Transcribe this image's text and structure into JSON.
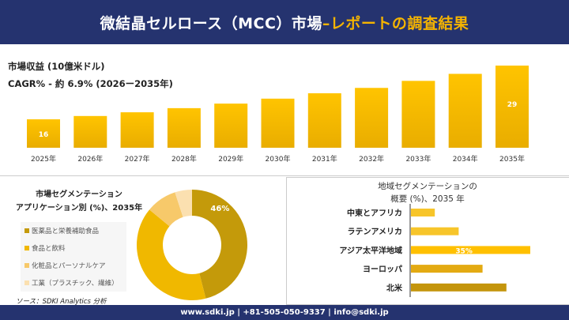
{
  "header": {
    "title_main": "微結晶セルロース（MCC）市場 ",
    "title_accent": "–レポートの調査結果"
  },
  "revenue_label": "市場収益 (10億米ドル)",
  "cagr_label": "CAGR% - 約 6.9% (2026ー2035年)",
  "donut_section": {
    "title_line1": "市場セグメンテーション",
    "title_line2": "アプリケーション別 (%)、2035年"
  },
  "region_section": {
    "title_line1": "地域セグメンテーションの",
    "title_line2": "概要 (%)、2035 年"
  },
  "source": "ソース：SDKI Analytics 分析",
  "footer": "www.sdki.jp | +81-505-050-9337 | info@sdki.jp",
  "colors": {
    "header": "#25336f",
    "accent": "#f5b400",
    "bar": "#f2b600"
  },
  "chart_data": [
    {
      "type": "bar",
      "categories": [
        "2025年",
        "2026年",
        "2027年",
        "2028年",
        "2029年",
        "2030年",
        "2031年",
        "2032年",
        "2033年",
        "2034年",
        "2035年"
      ],
      "values": [
        16,
        16.8,
        17.7,
        18.7,
        19.8,
        21.0,
        22.3,
        23.6,
        25.3,
        27.0,
        29
      ],
      "data_labels": {
        "0": "16",
        "10": "29"
      }
    },
    {
      "type": "pie",
      "donut": true,
      "categories": [
        "医薬品と栄養補助食品",
        "食品と飲料",
        "化粧品とパーソナルケア",
        "工業（プラスチック、繊維）"
      ],
      "values": [
        46,
        40,
        9,
        5
      ],
      "colors": [
        "#c49a0a",
        "#f0b800",
        "#f7c96a",
        "#fbe0b0"
      ],
      "data_labels": {
        "0": "46%"
      }
    },
    {
      "type": "bar",
      "orientation": "horizontal",
      "categories": [
        "中東とアフリカ",
        "ラテンアメリカ",
        "アジア太平洋地域",
        "ヨーロッパ",
        "北米"
      ],
      "values": [
        7,
        14,
        35,
        21,
        28
      ],
      "colors": [
        "#f7c52a",
        "#f7c52a",
        "#ffc000",
        "#e3aa12",
        "#c4950c"
      ],
      "data_labels": {
        "2": "35%"
      }
    }
  ]
}
